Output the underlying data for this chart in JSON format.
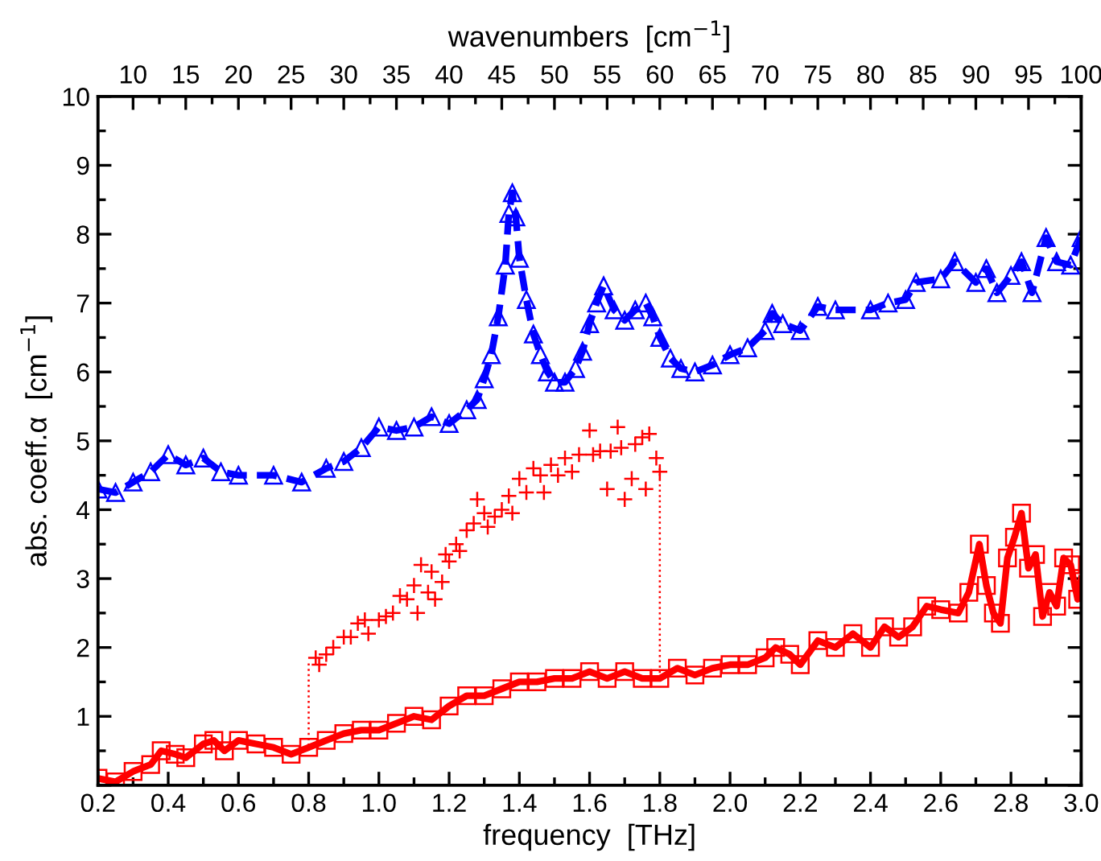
{
  "chart_data": {
    "type": "line",
    "xlabel": "frequency  [THz]",
    "ylabel": "abs. coeff.α  [cm$^{−1}$]",
    "x2label": "wavenumbers  [cm$^{−1}$]",
    "xlim": [
      0.2,
      3.0
    ],
    "xticks": [
      0.2,
      0.4,
      0.6,
      0.8,
      {
        "value": 1,
        "label": "1.0"
      },
      1.2,
      1.4,
      1.6,
      1.8,
      {
        "value": 2,
        "label": "2.0"
      },
      2.2,
      2.4,
      2.6,
      2.8,
      {
        "value": 3,
        "label": "3.0"
      }
    ],
    "x2lim": [
      6.67,
      100
    ],
    "x2ticks": [
      10,
      15,
      20,
      25,
      30,
      35,
      40,
      45,
      50,
      55,
      60,
      65,
      70,
      75,
      80,
      85,
      90,
      95,
      100
    ],
    "ylim": [
      0,
      10
    ],
    "yticks": [
      {
        "value": 0,
        "label": null
      },
      1,
      2,
      3,
      4,
      5,
      6,
      7,
      8,
      9,
      10
    ],
    "grid": false,
    "legend": false,
    "series": [
      {
        "color": "#0000ff",
        "marker": "triangle",
        "line_style": "dashed",
        "x": [
          0.2,
          0.25,
          0.3,
          0.35,
          0.4,
          0.45,
          0.5,
          0.55,
          0.6,
          0.7,
          0.78,
          0.85,
          0.9,
          0.95,
          1.0,
          1.05,
          1.1,
          1.15,
          1.2,
          1.25,
          1.28,
          1.3,
          1.32,
          1.34,
          1.36,
          1.37,
          1.38,
          1.39,
          1.4,
          1.42,
          1.44,
          1.46,
          1.48,
          1.5,
          1.53,
          1.56,
          1.58,
          1.6,
          1.62,
          1.64,
          1.67,
          1.7,
          1.73,
          1.76,
          1.78,
          1.8,
          1.83,
          1.86,
          1.9,
          1.95,
          2.0,
          2.05,
          2.1,
          2.12,
          2.15,
          2.2,
          2.25,
          2.3,
          2.4,
          2.45,
          2.5,
          2.53,
          2.6,
          2.64,
          2.7,
          2.73,
          2.76,
          2.8,
          2.83,
          2.86,
          2.9,
          2.93,
          2.97,
          3.0
        ],
        "values": [
          4.3,
          4.25,
          4.4,
          4.55,
          4.8,
          4.65,
          4.75,
          4.55,
          4.5,
          4.5,
          4.4,
          4.6,
          4.7,
          4.9,
          5.2,
          5.15,
          5.2,
          5.35,
          5.25,
          5.45,
          5.6,
          5.9,
          6.25,
          6.8,
          7.55,
          8.3,
          8.6,
          8.25,
          7.65,
          7.05,
          6.55,
          6.25,
          6.0,
          5.85,
          5.85,
          6.05,
          6.3,
          6.7,
          7.0,
          7.25,
          6.9,
          6.75,
          6.9,
          7.0,
          6.8,
          6.5,
          6.2,
          6.05,
          6.0,
          6.1,
          6.25,
          6.35,
          6.6,
          6.85,
          6.7,
          6.6,
          6.95,
          6.9,
          6.9,
          7.0,
          7.05,
          7.3,
          7.35,
          7.6,
          7.3,
          7.5,
          7.15,
          7.4,
          7.6,
          7.15,
          7.95,
          7.6,
          7.55,
          7.95
        ]
      },
      {
        "color": "#ff0000",
        "marker": "square",
        "line_style": "solid",
        "x": [
          0.2,
          0.25,
          0.3,
          0.35,
          0.38,
          0.42,
          0.45,
          0.5,
          0.53,
          0.56,
          0.6,
          0.65,
          0.7,
          0.75,
          0.8,
          0.85,
          0.9,
          0.95,
          1.0,
          1.05,
          1.1,
          1.15,
          1.2,
          1.25,
          1.3,
          1.35,
          1.4,
          1.45,
          1.5,
          1.55,
          1.6,
          1.65,
          1.7,
          1.75,
          1.8,
          1.85,
          1.9,
          1.95,
          2.0,
          2.05,
          2.1,
          2.13,
          2.17,
          2.2,
          2.25,
          2.3,
          2.35,
          2.4,
          2.44,
          2.48,
          2.52,
          2.56,
          2.6,
          2.65,
          2.68,
          2.71,
          2.73,
          2.75,
          2.77,
          2.79,
          2.81,
          2.83,
          2.85,
          2.87,
          2.89,
          2.91,
          2.93,
          2.95,
          2.97,
          2.99,
          3.0
        ],
        "values": [
          0.1,
          0.05,
          0.2,
          0.3,
          0.5,
          0.45,
          0.4,
          0.6,
          0.65,
          0.5,
          0.65,
          0.6,
          0.55,
          0.45,
          0.55,
          0.65,
          0.75,
          0.8,
          0.8,
          0.9,
          1.0,
          0.95,
          1.15,
          1.3,
          1.3,
          1.4,
          1.5,
          1.5,
          1.55,
          1.55,
          1.65,
          1.55,
          1.65,
          1.55,
          1.55,
          1.7,
          1.6,
          1.7,
          1.75,
          1.75,
          1.85,
          2.0,
          1.9,
          1.75,
          2.1,
          2.0,
          2.2,
          2.0,
          2.3,
          2.15,
          2.3,
          2.6,
          2.55,
          2.5,
          2.8,
          3.5,
          2.9,
          2.5,
          2.35,
          3.3,
          3.6,
          3.95,
          3.15,
          3.35,
          2.45,
          2.8,
          2.6,
          3.3,
          3.2,
          2.7,
          3.0
        ]
      },
      {
        "type": "scatter",
        "color": "#ff0000",
        "marker": "cross",
        "x": [
          0.82,
          0.83,
          0.85,
          0.87,
          0.9,
          0.92,
          0.94,
          0.96,
          0.97,
          1.0,
          1.02,
          1.04,
          1.06,
          1.08,
          1.1,
          1.11,
          1.12,
          1.14,
          1.15,
          1.16,
          1.18,
          1.19,
          1.2,
          1.22,
          1.23,
          1.25,
          1.27,
          1.28,
          1.3,
          1.31,
          1.33,
          1.35,
          1.37,
          1.38,
          1.4,
          1.42,
          1.44,
          1.46,
          1.47,
          1.49,
          1.51,
          1.53,
          1.55,
          1.57,
          1.6,
          1.61,
          1.63,
          1.65,
          1.66,
          1.68,
          1.69,
          1.7,
          1.72,
          1.73,
          1.75,
          1.76,
          1.77,
          1.79,
          1.8
        ],
        "values": [
          1.85,
          1.75,
          1.9,
          2.0,
          2.15,
          2.15,
          2.35,
          2.4,
          2.2,
          2.4,
          2.45,
          2.5,
          2.75,
          2.7,
          2.9,
          2.5,
          3.2,
          2.8,
          3.1,
          2.7,
          2.95,
          3.35,
          3.25,
          3.5,
          3.4,
          3.7,
          3.8,
          4.15,
          3.95,
          3.75,
          3.9,
          4.0,
          4.2,
          3.95,
          4.45,
          4.25,
          4.6,
          4.5,
          4.25,
          4.65,
          4.5,
          4.75,
          4.55,
          4.8,
          5.15,
          4.8,
          4.85,
          4.3,
          4.85,
          5.2,
          4.9,
          4.15,
          4.45,
          4.95,
          5.05,
          4.3,
          5.1,
          4.75,
          4.55
        ]
      },
      {
        "color": "#ff0000",
        "line_style": "dotted",
        "x": [
          0.8,
          0.8
        ],
        "values": [
          0.5,
          1.8
        ]
      },
      {
        "color": "#ff0000",
        "line_style": "dotted",
        "x": [
          1.8,
          1.8
        ],
        "values": [
          4.6,
          1.55
        ]
      }
    ]
  }
}
